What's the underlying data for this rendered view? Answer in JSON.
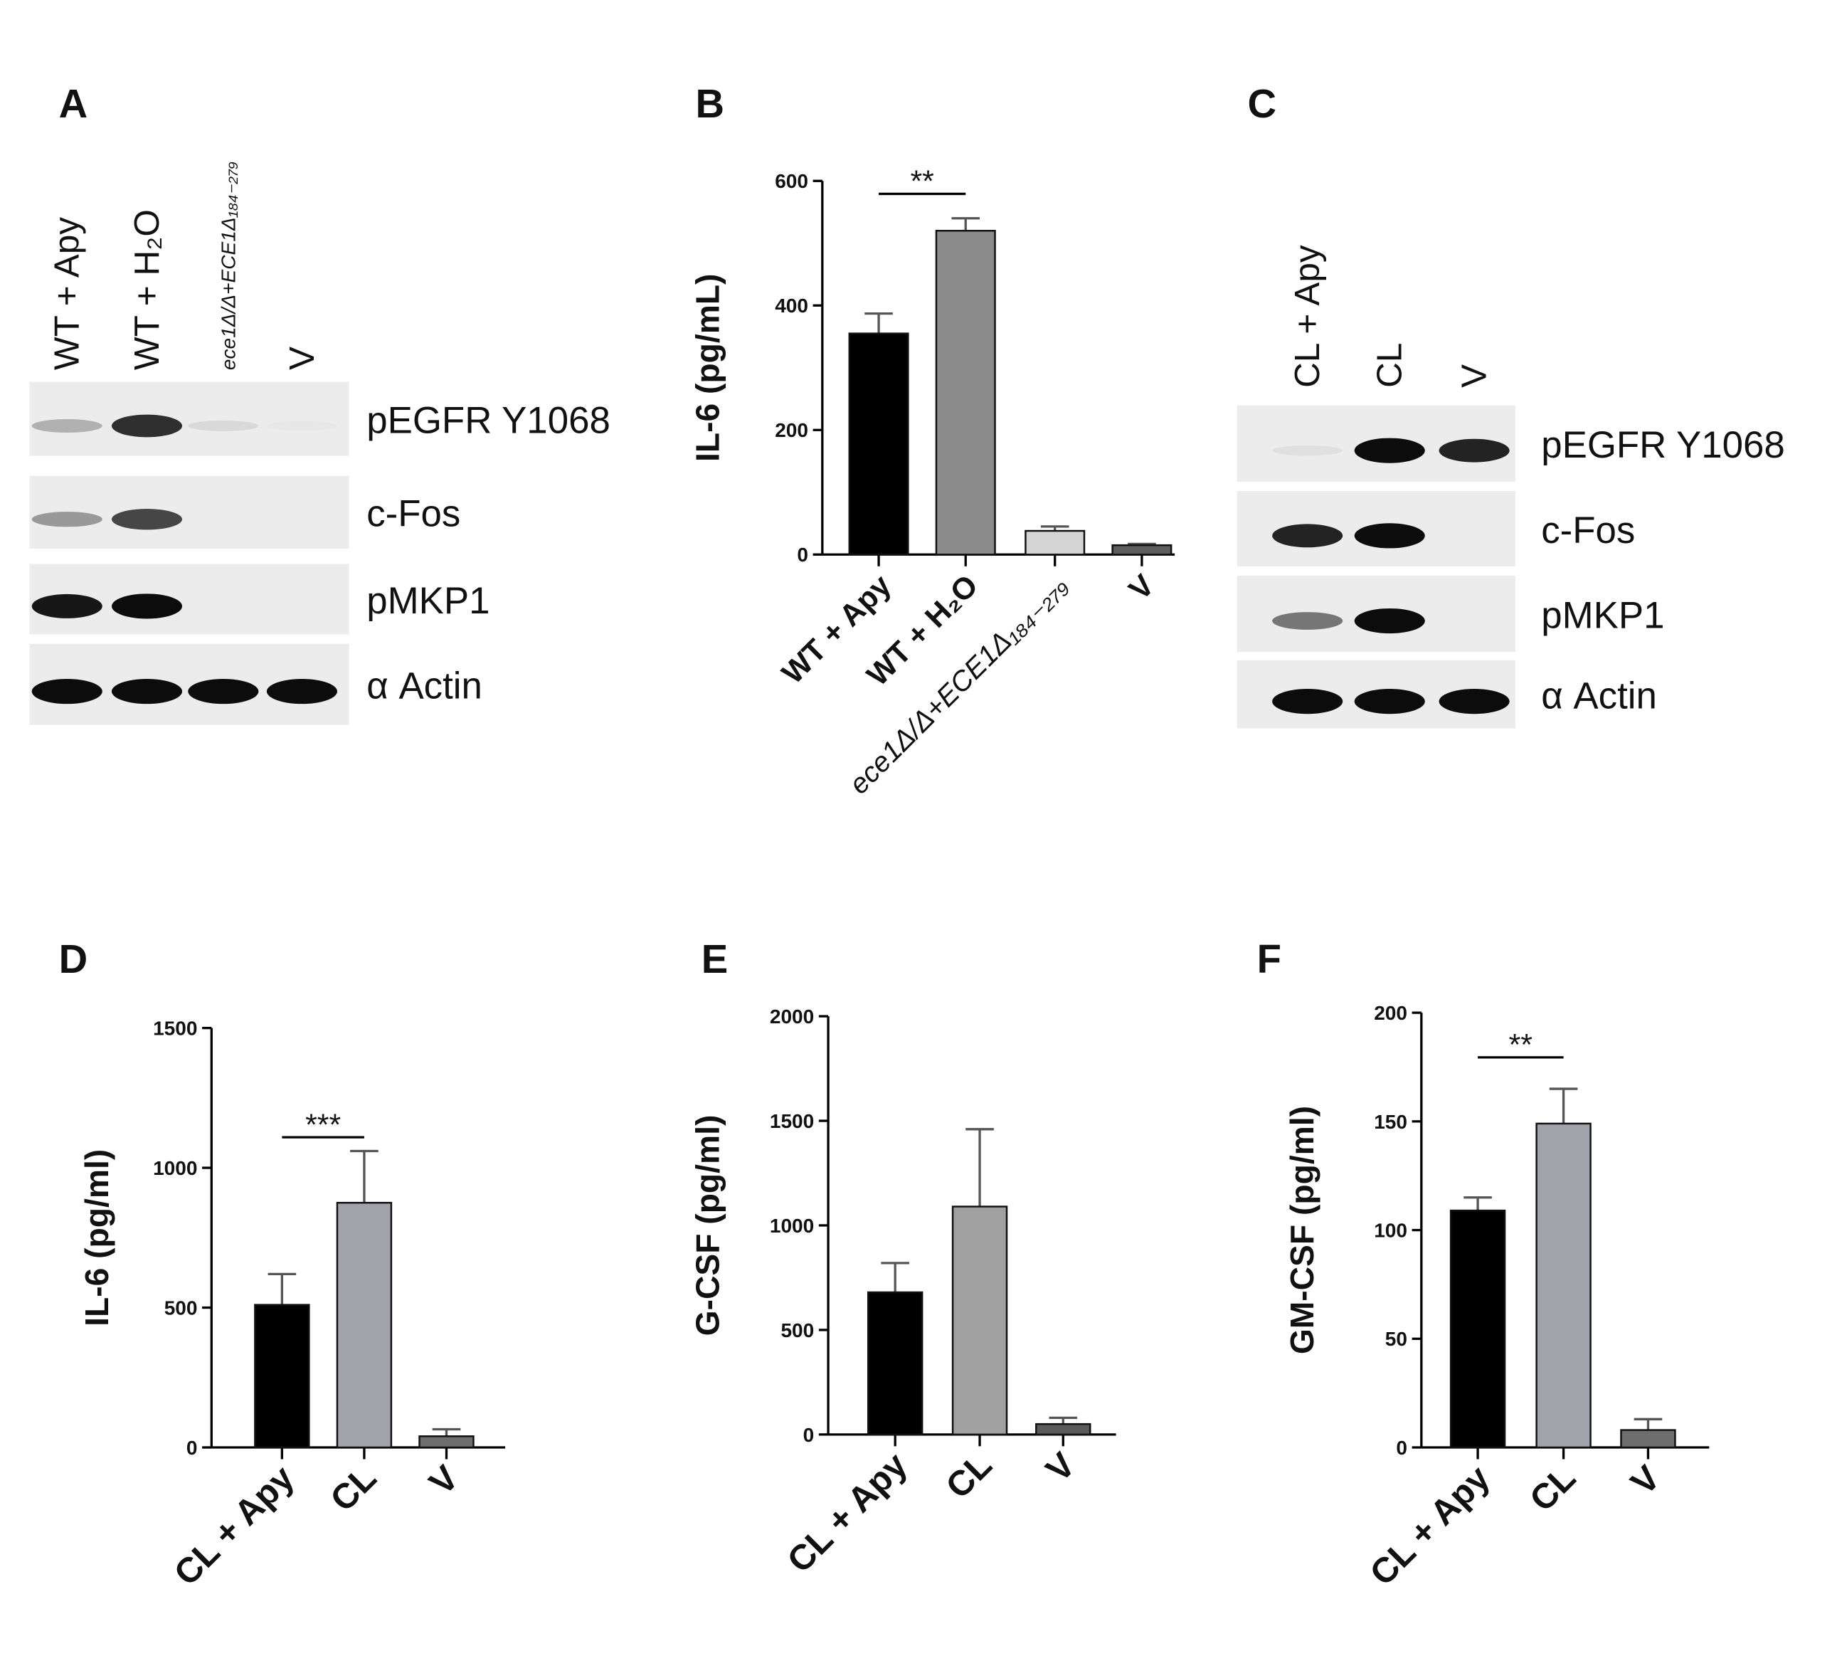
{
  "panels": [
    "A",
    "B",
    "C",
    "D",
    "E",
    "F"
  ],
  "blots": [
    {
      "lanes": [
        "WT + Apy",
        "WT + H₂O",
        "ece1Δ/Δ+ECE1Δ₁₈₄₋₂₇₉",
        "V"
      ],
      "bands": [
        "pEGFR Y1068",
        "c-Fos",
        "pMKP1",
        "α Actin"
      ]
    },
    {
      "lanes": [
        "CL + Apy",
        "CL",
        "V"
      ],
      "bands": [
        "pEGFR Y1068",
        "c-Fos",
        "pMKP1",
        "α Actin"
      ]
    }
  ],
  "chart_data": [
    {
      "type": "bar",
      "y_label": "IL-6 (pg/mL)",
      "categories": [
        "WT + Apy",
        "WT + H₂O",
        "ece1Δ/Δ+ECE1Δ₁₈₄₋₂₇₉",
        "V"
      ],
      "values": [
        355,
        520,
        38,
        15
      ],
      "errors": [
        32,
        20,
        7,
        2
      ],
      "colors": [
        "#000000",
        "#8c8c8c",
        "#d4d4d4",
        "#5e5e5e"
      ],
      "ylim": [
        0,
        600
      ],
      "yticks": [
        0,
        200,
        400,
        600
      ],
      "significance": "**"
    },
    {
      "type": "bar",
      "y_label": "IL-6 (pg/ml)",
      "categories": [
        "CL + Apy",
        "CL",
        "V"
      ],
      "values": [
        510,
        875,
        40
      ],
      "errors": [
        110,
        185,
        25
      ],
      "colors": [
        "#000000",
        "#a2a2aa",
        "#6e6e6e"
      ],
      "ylim": [
        0,
        1500
      ],
      "yticks": [
        0,
        500,
        1000,
        1500
      ],
      "significance": "***"
    },
    {
      "type": "bar",
      "y_label": "G-CSF (pg/ml)",
      "categories": [
        "CL + Apy",
        "CL",
        "V"
      ],
      "values": [
        680,
        1090,
        50
      ],
      "errors": [
        140,
        370,
        30
      ],
      "colors": [
        "#000000",
        "#a0a0a0",
        "#5a5a5a"
      ],
      "ylim": [
        0,
        2000
      ],
      "yticks": [
        0,
        500,
        1000,
        1500,
        2000
      ]
    },
    {
      "type": "bar",
      "y_label": "GM-CSF (pg/ml)",
      "categories": [
        "CL + Apy",
        "CL",
        "V"
      ],
      "values": [
        109,
        149,
        8
      ],
      "errors": [
        6,
        16,
        5
      ],
      "colors": [
        "#000000",
        "#a2a2aa",
        "#6e6e6e"
      ],
      "ylim": [
        0,
        200
      ],
      "yticks": [
        0,
        50,
        100,
        150,
        200
      ],
      "significance": "**"
    }
  ]
}
